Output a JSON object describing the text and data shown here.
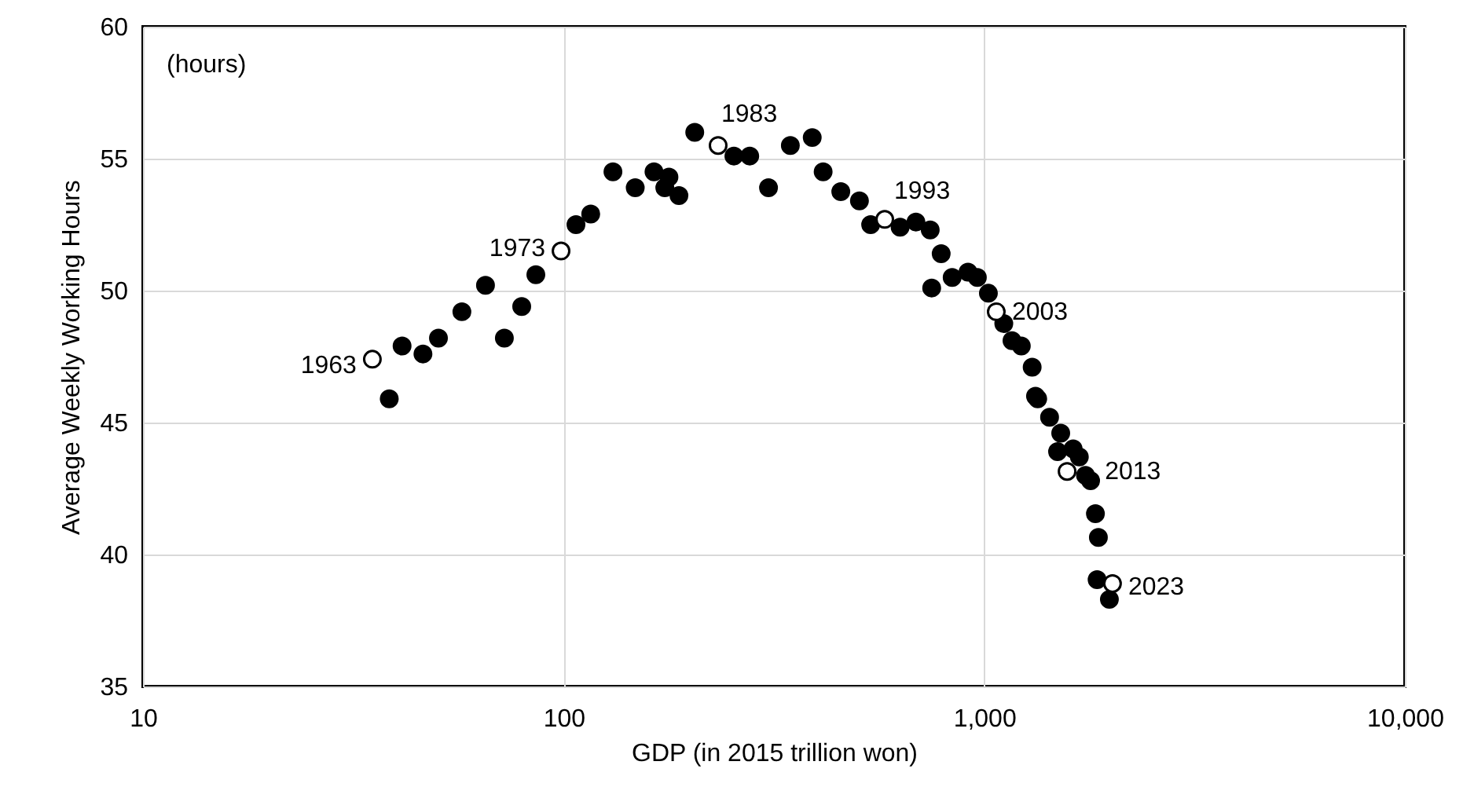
{
  "chart_data": {
    "type": "scatter",
    "xlabel": "GDP (in 2015 trillion won)",
    "ylabel": "Average Weekly Working Hours",
    "log": "x",
    "xlim": [
      10,
      10000
    ],
    "xticks": [
      10,
      100,
      {
        "value": 1000,
        "label": "1,000"
      },
      {
        "value": 10000,
        "label": "10,000"
      }
    ],
    "ylim": [
      35,
      60
    ],
    "yticks": [
      35,
      40,
      45,
      50,
      55,
      60
    ],
    "grid": true,
    "marker": "circle",
    "series": [
      {
        "color": "#000000",
        "x": [
          38.5,
          41.3,
          46.3,
          50.4,
          57.3,
          65.2,
          72.3,
          79.5,
          85.9,
          107,
          116,
          131,
          148,
          164,
          178,
          174,
          188,
          205,
          254,
          277,
          307,
          346,
          390,
          414,
          456,
          505,
          537,
          631,
          688,
          744,
          790,
          750,
          839,
          915,
          963,
          1023,
          1113,
          1164,
          1225,
          1300,
          1324,
          1340,
          1430,
          1520,
          1494,
          1627,
          1683,
          1741,
          1790,
          1838,
          1868,
          1855,
          1984
        ],
        "values": [
          45.9,
          47.9,
          47.6,
          48.2,
          49.2,
          50.2,
          48.2,
          49.4,
          50.6,
          52.5,
          52.9,
          54.5,
          53.9,
          54.5,
          54.3,
          53.9,
          53.6,
          56.0,
          55.1,
          55.1,
          53.9,
          55.5,
          55.8,
          54.5,
          53.75,
          53.4,
          52.5,
          52.4,
          52.6,
          52.3,
          51.4,
          50.1,
          50.5,
          50.7,
          50.5,
          49.9,
          48.75,
          48.1,
          47.9,
          47.1,
          46.0,
          45.9,
          45.2,
          44.6,
          43.9,
          44.0,
          43.7,
          43.0,
          42.8,
          41.55,
          40.65,
          39.05,
          38.3
        ]
      },
      {
        "color": "#ffffff",
        "x": [
          35.1,
          98.6,
          233,
          580,
          1068,
          1574,
          2018
        ],
        "values": [
          47.4,
          51.5,
          55.5,
          52.7,
          49.2,
          43.15,
          38.9
        ]
      }
    ],
    "annotations": [
      "(hours)",
      {
        "text": "1963",
        "x": 35.1,
        "y": 47.4
      },
      {
        "text": "1973",
        "x": 98.6,
        "y": 51.5
      },
      {
        "text": "1983",
        "x": 233,
        "y": 55.5
      },
      {
        "text": "1993",
        "x": 580,
        "y": 52.7
      },
      {
        "text": "2003",
        "x": 1068,
        "y": 49.2
      },
      {
        "text": "2013",
        "x": 1574,
        "y": 43.15
      },
      {
        "text": "2023",
        "x": 2018,
        "y": 38.9
      }
    ]
  }
}
